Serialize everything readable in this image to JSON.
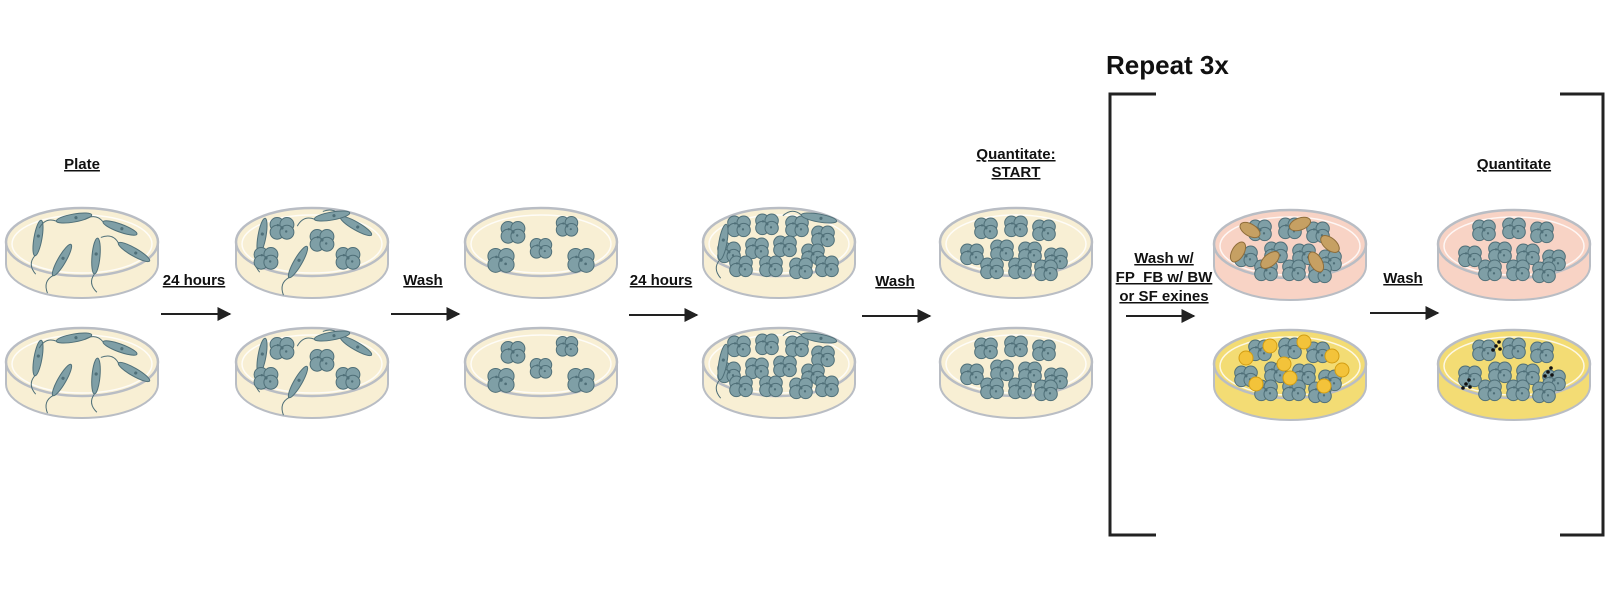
{
  "title": "Repeat 3x",
  "labels": {
    "plate": "Plate",
    "step1": "24 hours",
    "step2": "Wash",
    "step3": "24 hours",
    "step4": "Wash",
    "start_line1": "Quantitate:",
    "start_line2": "START",
    "repeat_wash_line1": "Wash w/",
    "repeat_wash_line2": "FP_FB w/ BW",
    "repeat_wash_line3": "or SF exines",
    "step6": "Wash",
    "end": "Quantitate"
  },
  "colors": {
    "dish_medium": "#f8efd4",
    "dish_rim": "#b9bdc4",
    "cell": "#7f9fa6",
    "cell_dark": "#4f6f78",
    "pink_medium": "#f8d3c5",
    "yellow_medium": "#f3dc74",
    "fp_particle": "#c6a063",
    "sf_particle": "#f3c33a",
    "arrow": "#222222"
  }
}
